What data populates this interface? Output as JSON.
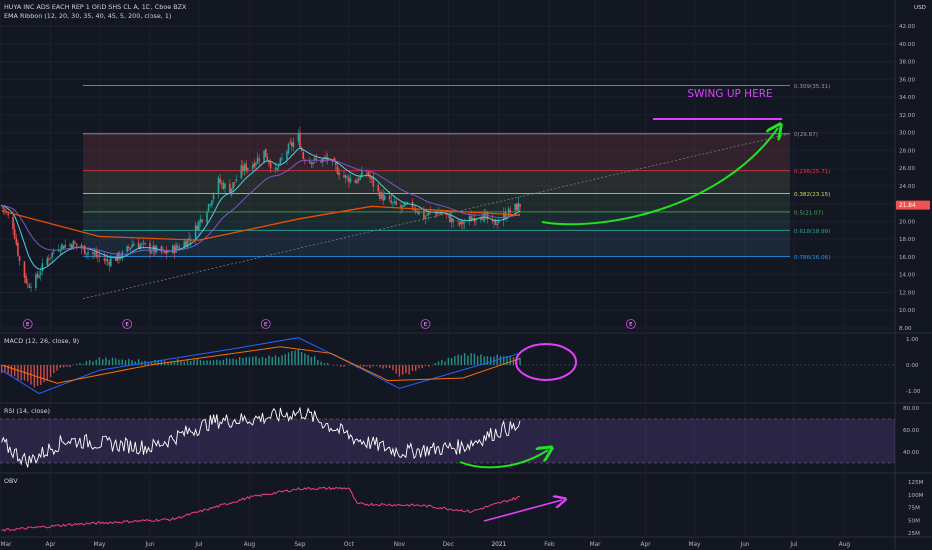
{
  "header": {
    "symbol_line": "HUYA INC ADS EACH REP 1 ORD SHS CL A, 1D, Cboe BZX",
    "ribbon_line": "EMA Ribbon (12, 20, 30, 35, 40, 45, 5, 200, close, 1)",
    "currency": "USD"
  },
  "price_axis": {
    "labels": [
      "42.00",
      "40.00",
      "38.00",
      "36.00",
      "34.00",
      "32.00",
      "30.00",
      "28.00",
      "26.00",
      "24.00",
      "22.00",
      "20.00",
      "18.00",
      "16.00",
      "14.00",
      "12.00",
      "10.00",
      "8.00"
    ]
  },
  "current_price": "21.84",
  "fib_levels": [
    {
      "label": "0.309(35.31)",
      "color": "#9598a1"
    },
    {
      "label": "0(29.87)",
      "color": "#9598a1"
    },
    {
      "label": "0.236(25.71)",
      "color": "#f23645"
    },
    {
      "label": "0.382(23.15)",
      "color": "#c5e152"
    },
    {
      "label": "0.5(21.07)",
      "color": "#4caf50"
    },
    {
      "label": "0.618(18.99)",
      "color": "#26a69a"
    },
    {
      "label": "0.786(16.06)",
      "color": "#2196f3"
    }
  ],
  "annotation": {
    "swing_text": "SWING UP HERE",
    "color": "#e040fb"
  },
  "earnings_marker": "E",
  "macd": {
    "title": "MACD (12, 26, close, 9)",
    "axis": [
      "1.00",
      "0.00",
      "-1.00"
    ]
  },
  "rsi": {
    "title": "RSI (14, close)",
    "axis": [
      "80.00",
      "60.00",
      "40.00"
    ]
  },
  "obv": {
    "title": "OBV",
    "axis": [
      "125M",
      "100M",
      "75M",
      "50M",
      "25M"
    ]
  },
  "time_axis": [
    "Mar",
    "Apr",
    "May",
    "Jun",
    "Jul",
    "Aug",
    "Sep",
    "Oct",
    "Nov",
    "Dec",
    "2021",
    "Feb",
    "Mar",
    "Apr",
    "May",
    "Jun",
    "Jul",
    "Aug"
  ],
  "chart_data": {
    "type": "candlestick",
    "symbol": "HUYA",
    "interval": "1D",
    "y_range": [
      8,
      42
    ],
    "x_range": [
      "2020-03-01",
      "2021-08-31"
    ],
    "close_path": [
      [
        "2020-03-02",
        21.8
      ],
      [
        "2020-03-09",
        19.5
      ],
      [
        "2020-03-13",
        15.5
      ],
      [
        "2020-03-18",
        12.8
      ],
      [
        "2020-03-23",
        13.5
      ],
      [
        "2020-03-30",
        15.8
      ],
      [
        "2020-04-06",
        17.2
      ],
      [
        "2020-04-15",
        17.5
      ],
      [
        "2020-04-27",
        16.3
      ],
      [
        "2020-05-06",
        15.5
      ],
      [
        "2020-05-15",
        16.2
      ],
      [
        "2020-05-22",
        17.6
      ],
      [
        "2020-06-01",
        16.9
      ],
      [
        "2020-06-10",
        16.4
      ],
      [
        "2020-06-19",
        17.2
      ],
      [
        "2020-06-26",
        18.2
      ],
      [
        "2020-07-06",
        21.5
      ],
      [
        "2020-07-13",
        24.5
      ],
      [
        "2020-07-20",
        23.5
      ],
      [
        "2020-07-27",
        25.8
      ],
      [
        "2020-08-03",
        26.5
      ],
      [
        "2020-08-10",
        27.8
      ],
      [
        "2020-08-17",
        25.5
      ],
      [
        "2020-08-24",
        28.0
      ],
      [
        "2020-08-31",
        29.5
      ],
      [
        "2020-09-03",
        27.2
      ],
      [
        "2020-09-10",
        26.8
      ],
      [
        "2020-09-18",
        27.0
      ],
      [
        "2020-09-28",
        25.0
      ],
      [
        "2020-10-05",
        24.6
      ],
      [
        "2020-10-12",
        25.5
      ],
      [
        "2020-10-19",
        23.2
      ],
      [
        "2020-10-26",
        22.1
      ],
      [
        "2020-11-02",
        21.5
      ],
      [
        "2020-11-09",
        21.8
      ],
      [
        "2020-11-16",
        20.5
      ],
      [
        "2020-11-23",
        21.1
      ],
      [
        "2020-11-30",
        20.6
      ],
      [
        "2020-12-07",
        19.6
      ],
      [
        "2020-12-14",
        20.2
      ],
      [
        "2020-12-21",
        20.9
      ],
      [
        "2020-12-28",
        19.6
      ],
      [
        "2021-01-04",
        20.6
      ],
      [
        "2021-01-08",
        21.2
      ],
      [
        "2021-01-14",
        21.84
      ]
    ],
    "ema_200": [
      [
        "2020-03-02",
        21.2
      ],
      [
        "2020-05-01",
        18.3
      ],
      [
        "2020-07-01",
        17.9
      ],
      [
        "2020-09-01",
        20.3
      ],
      [
        "2020-10-15",
        21.7
      ],
      [
        "2020-12-01",
        21.2
      ],
      [
        "2021-01-14",
        20.7
      ]
    ],
    "fibonacci": [
      {
        "ratio": 0.309,
        "price": 35.31
      },
      {
        "ratio": 0,
        "price": 29.87
      },
      {
        "ratio": 0.236,
        "price": 25.71
      },
      {
        "ratio": 0.382,
        "price": 23.15
      },
      {
        "ratio": 0.5,
        "price": 21.07
      },
      {
        "ratio": 0.618,
        "price": 18.99
      },
      {
        "ratio": 0.786,
        "price": 16.06
      }
    ],
    "macd_range": [
      -1.6,
      1.3
    ],
    "macd_line": [
      [
        "2020-03-02",
        -0.2
      ],
      [
        "2020-03-25",
        -1.1
      ],
      [
        "2020-05-01",
        -0.2
      ],
      [
        "2020-07-20",
        0.6
      ],
      [
        "2020-08-31",
        1.05
      ],
      [
        "2020-10-01",
        0.1
      ],
      [
        "2020-11-01",
        -0.9
      ],
      [
        "2020-12-01",
        -0.35
      ],
      [
        "2021-01-14",
        0.45
      ]
    ],
    "macd_signal": [
      [
        "2020-03-02",
        0.0
      ],
      [
        "2020-04-05",
        -0.7
      ],
      [
        "2020-06-01",
        0.0
      ],
      [
        "2020-08-20",
        0.7
      ],
      [
        "2020-09-20",
        0.45
      ],
      [
        "2020-10-25",
        -0.6
      ],
      [
        "2020-12-10",
        -0.5
      ],
      [
        "2021-01-14",
        0.25
      ]
    ],
    "rsi_range": [
      25,
      85
    ],
    "rsi_bands": [
      30,
      70
    ],
    "rsi_line": [
      [
        "2020-03-02",
        48
      ],
      [
        "2020-03-18",
        31
      ],
      [
        "2020-04-10",
        51
      ],
      [
        "2020-06-01",
        44
      ],
      [
        "2020-07-10",
        68
      ],
      [
        "2020-08-03",
        70
      ],
      [
        "2020-09-03",
        76
      ],
      [
        "2020-10-05",
        52
      ],
      [
        "2020-11-02",
        40
      ],
      [
        "2020-12-10",
        45
      ],
      [
        "2021-01-04",
        61
      ],
      [
        "2021-01-14",
        62
      ]
    ],
    "obv_range": [
      20,
      130
    ],
    "obv_millions": [
      [
        "2020-03-02",
        30
      ],
      [
        "2020-04-15",
        42
      ],
      [
        "2020-06-15",
        52
      ],
      [
        "2020-08-01",
        95
      ],
      [
        "2020-09-01",
        112
      ],
      [
        "2020-10-01",
        113
      ],
      [
        "2020-10-06",
        82
      ],
      [
        "2020-11-15",
        79
      ],
      [
        "2020-12-15",
        67
      ],
      [
        "2021-01-14",
        96
      ]
    ]
  }
}
